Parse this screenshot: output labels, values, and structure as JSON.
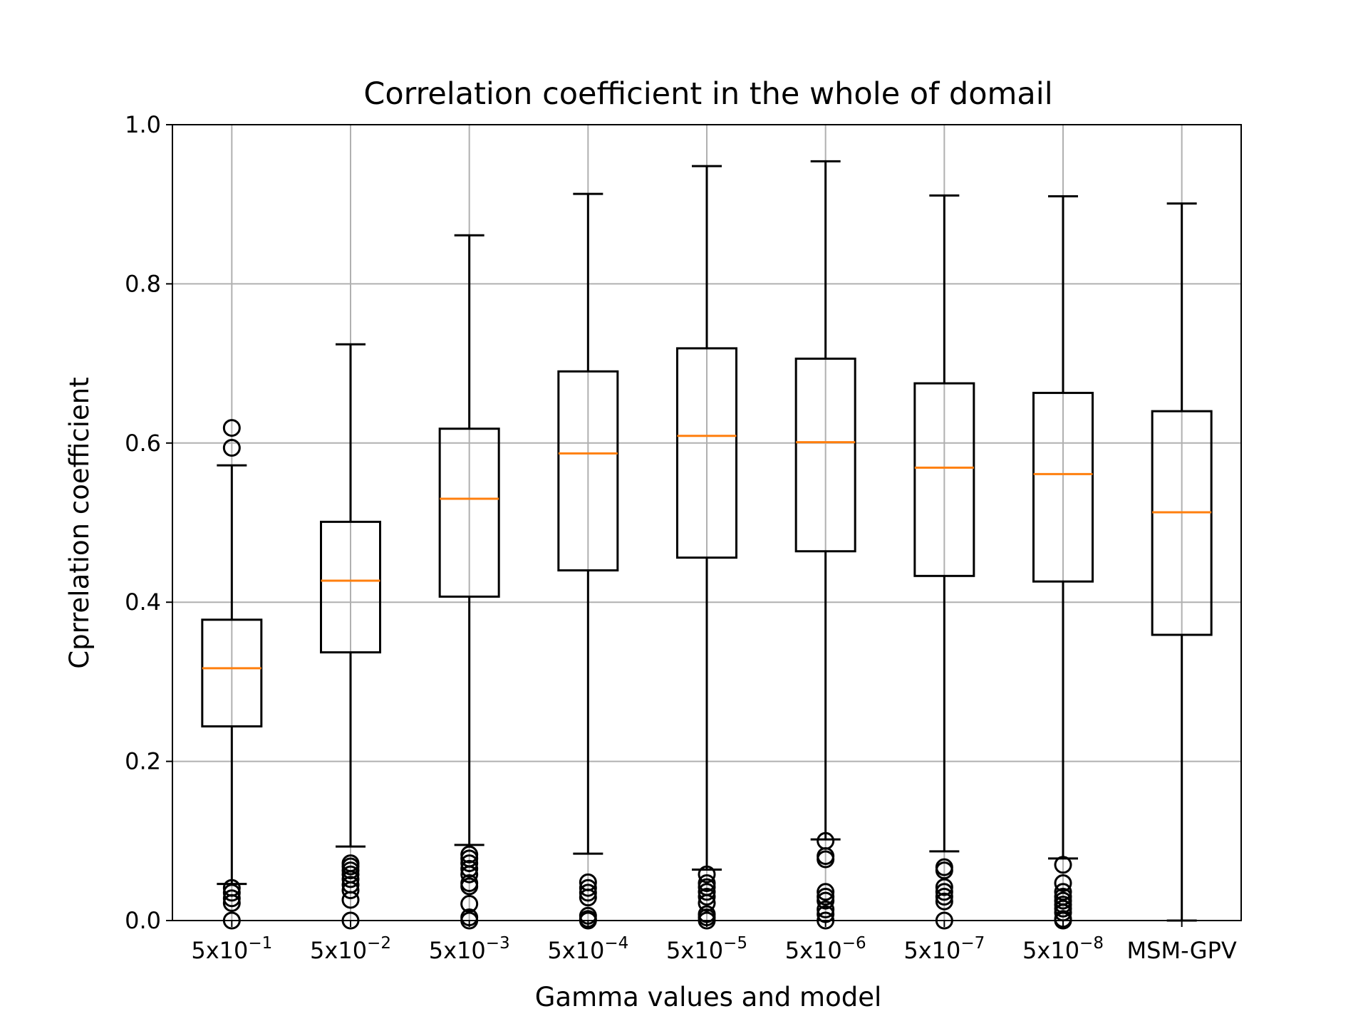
{
  "chart_data": {
    "type": "box",
    "title": "Correlation coefficient in the whole of domail",
    "xlabel": "Gamma values and model",
    "ylabel": "Cprrelation coefficient",
    "ylim": [
      0.0,
      1.0
    ],
    "yticks": [
      "0.0",
      "0.2",
      "0.4",
      "0.6",
      "0.8",
      "1.0"
    ],
    "grid": true,
    "median_color": "#ff7f0e",
    "box_color": "#000000",
    "grid_color": "#b0b0b0",
    "categories": [
      {
        "base": "5x10",
        "exp": "−1"
      },
      {
        "base": "5x10",
        "exp": "−2"
      },
      {
        "base": "5x10",
        "exp": "−3"
      },
      {
        "base": "5x10",
        "exp": "−4"
      },
      {
        "base": "5x10",
        "exp": "−5"
      },
      {
        "base": "5x10",
        "exp": "−6"
      },
      {
        "base": "5x10",
        "exp": "−7"
      },
      {
        "base": "5x10",
        "exp": "−8"
      },
      {
        "base": "MSM-GPV",
        "exp": ""
      }
    ],
    "boxes": [
      {
        "whislo": 0.046,
        "q1": 0.244,
        "median": 0.317,
        "q3": 0.378,
        "whishi": 0.572,
        "fliers": [
          0.619,
          0.594,
          0.041,
          0.035,
          0.028,
          0.022,
          0.0
        ]
      },
      {
        "whislo": 0.093,
        "q1": 0.337,
        "median": 0.427,
        "q3": 0.501,
        "whishi": 0.724,
        "fliers": [
          0.072,
          0.068,
          0.063,
          0.058,
          0.052,
          0.045,
          0.038,
          0.026,
          0.0
        ]
      },
      {
        "whislo": 0.095,
        "q1": 0.407,
        "median": 0.53,
        "q3": 0.618,
        "whishi": 0.861,
        "fliers": [
          0.083,
          0.078,
          0.072,
          0.065,
          0.058,
          0.047,
          0.043,
          0.021,
          0.004,
          0.0
        ]
      },
      {
        "whislo": 0.084,
        "q1": 0.44,
        "median": 0.587,
        "q3": 0.69,
        "whishi": 0.913,
        "fliers": [
          0.048,
          0.041,
          0.035,
          0.029,
          0.006,
          0.002,
          0.0
        ]
      },
      {
        "whislo": 0.064,
        "q1": 0.456,
        "median": 0.609,
        "q3": 0.719,
        "whishi": 0.948,
        "fliers": [
          0.058,
          0.047,
          0.042,
          0.036,
          0.03,
          0.022,
          0.008,
          0.004,
          0.0
        ]
      },
      {
        "whislo": 0.102,
        "q1": 0.464,
        "median": 0.601,
        "q3": 0.706,
        "whishi": 0.954,
        "fliers": [
          0.1,
          0.081,
          0.077,
          0.036,
          0.03,
          0.025,
          0.014,
          0.008,
          0.0
        ]
      },
      {
        "whislo": 0.087,
        "q1": 0.433,
        "median": 0.569,
        "q3": 0.675,
        "whishi": 0.911,
        "fliers": [
          0.067,
          0.063,
          0.042,
          0.036,
          0.03,
          0.024,
          0.0
        ]
      },
      {
        "whislo": 0.078,
        "q1": 0.426,
        "median": 0.561,
        "q3": 0.663,
        "whishi": 0.91,
        "fliers": [
          0.07,
          0.047,
          0.036,
          0.03,
          0.025,
          0.02,
          0.015,
          0.01,
          0.002,
          0.0
        ]
      },
      {
        "whislo": 0.0,
        "q1": 0.359,
        "median": 0.513,
        "q3": 0.64,
        "whishi": 0.901,
        "fliers": []
      }
    ]
  }
}
